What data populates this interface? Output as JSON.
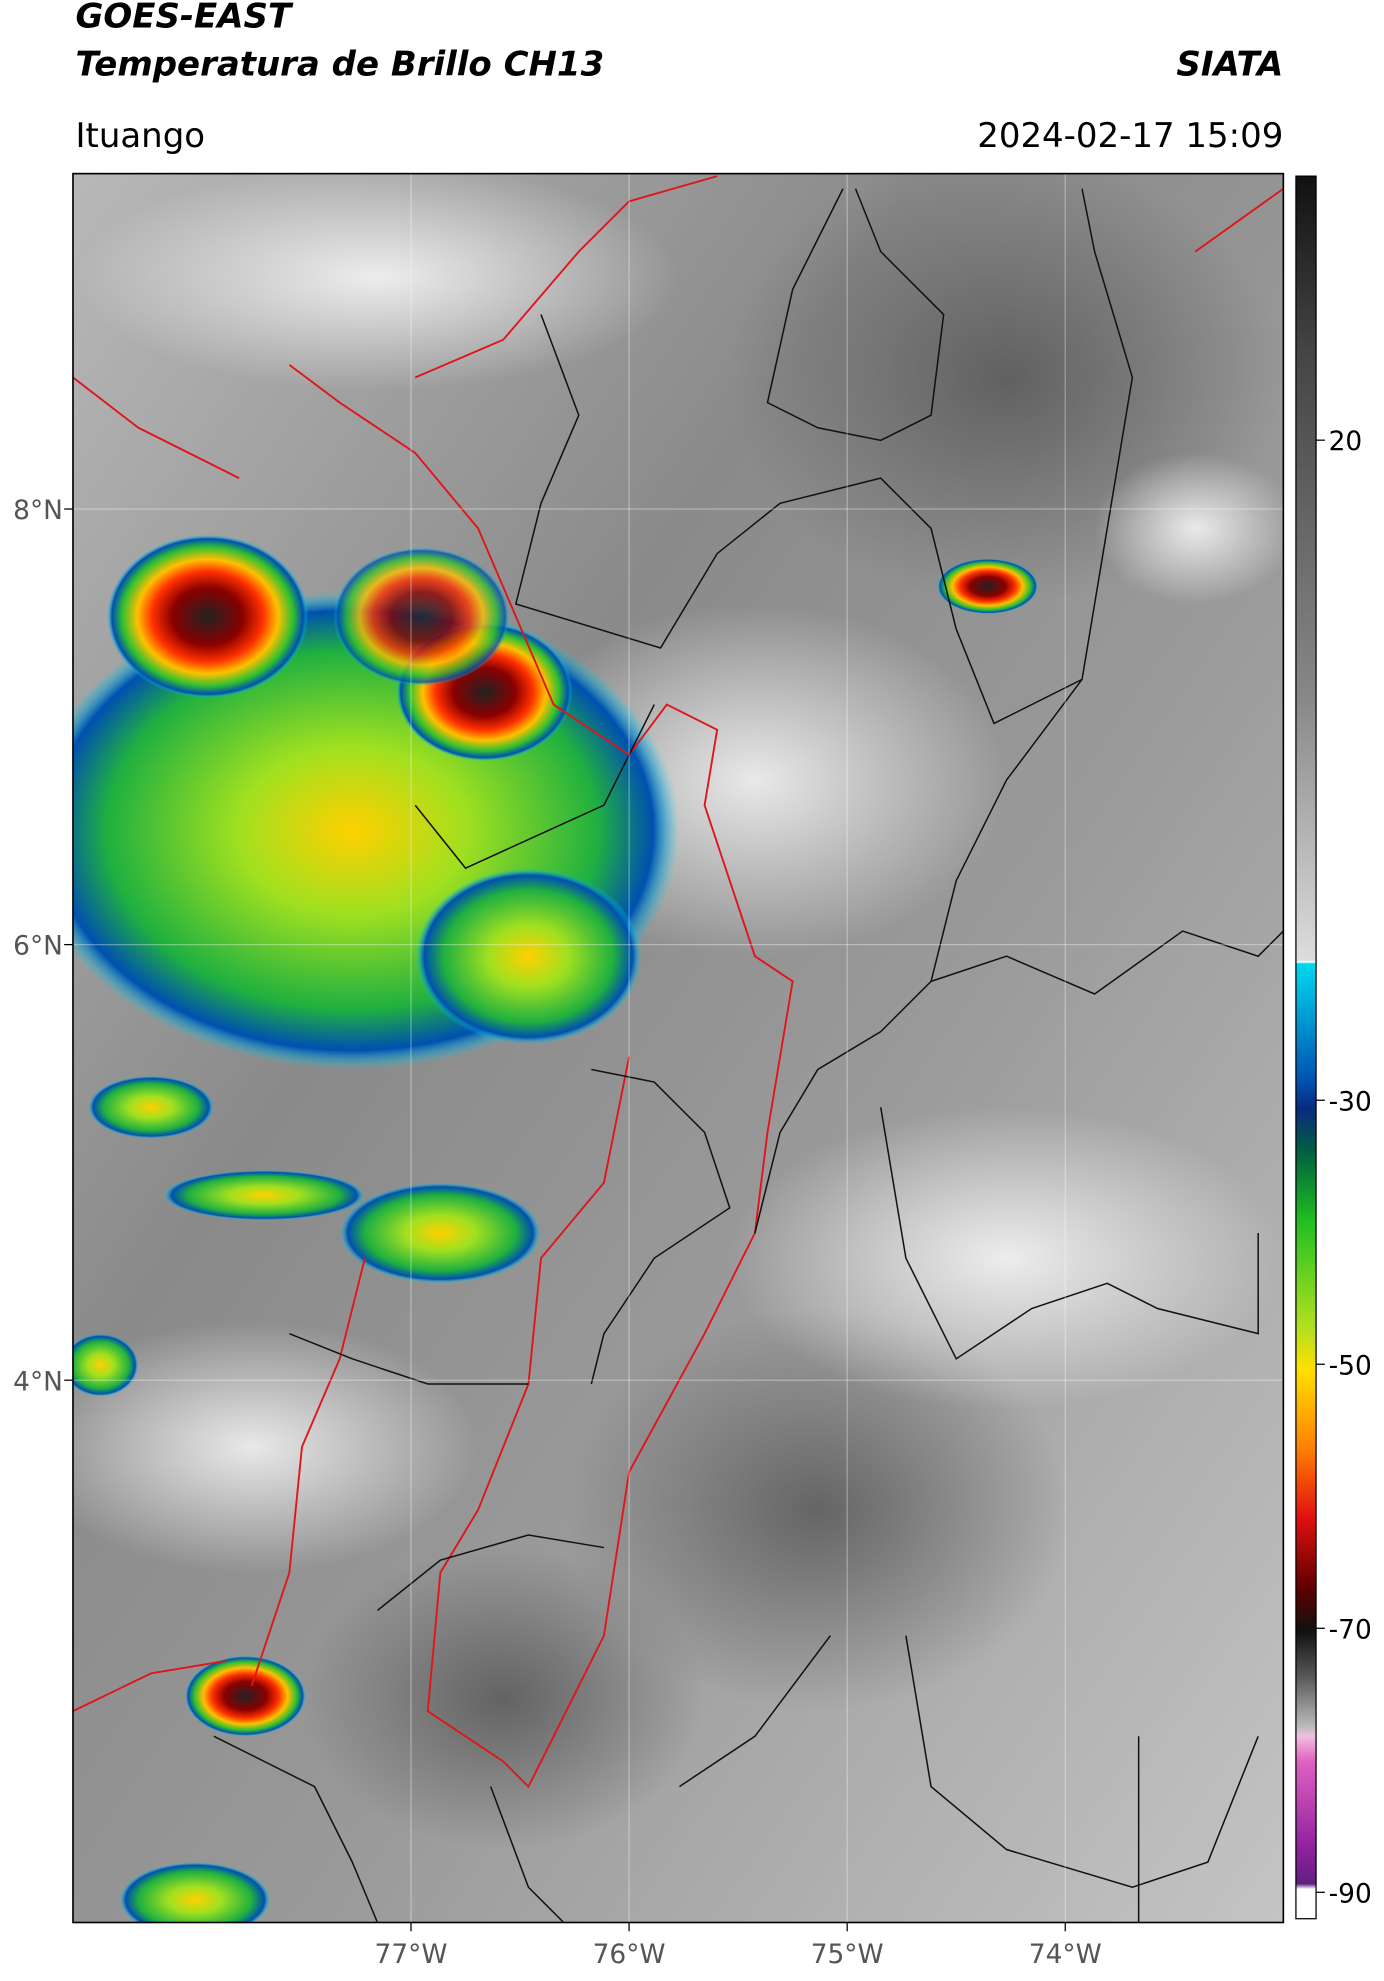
{
  "header": {
    "title": "GOES-EAST",
    "subtitle": "Temperatura de Brillo CH13",
    "brand": "SIATA",
    "location": "Ituango",
    "timestamp": "2024-02-17 15:09"
  },
  "map": {
    "xlim": [
      -78.55,
      -73
    ],
    "ylim": [
      1.51,
      9.54
    ],
    "xticks": [
      {
        "value": -77,
        "label": "77°W"
      },
      {
        "value": -76,
        "label": "76°W"
      },
      {
        "value": -75,
        "label": "75°W"
      },
      {
        "value": -74,
        "label": "74°W"
      }
    ],
    "yticks": [
      {
        "value": 8,
        "label": "8°N"
      },
      {
        "value": 6,
        "label": "6°N"
      },
      {
        "value": 4,
        "label": "4°N"
      }
    ]
  },
  "colorbar": {
    "lim": [
      40,
      -92
    ],
    "ticks": [
      20,
      -30,
      -50,
      -70,
      -90
    ]
  }
}
